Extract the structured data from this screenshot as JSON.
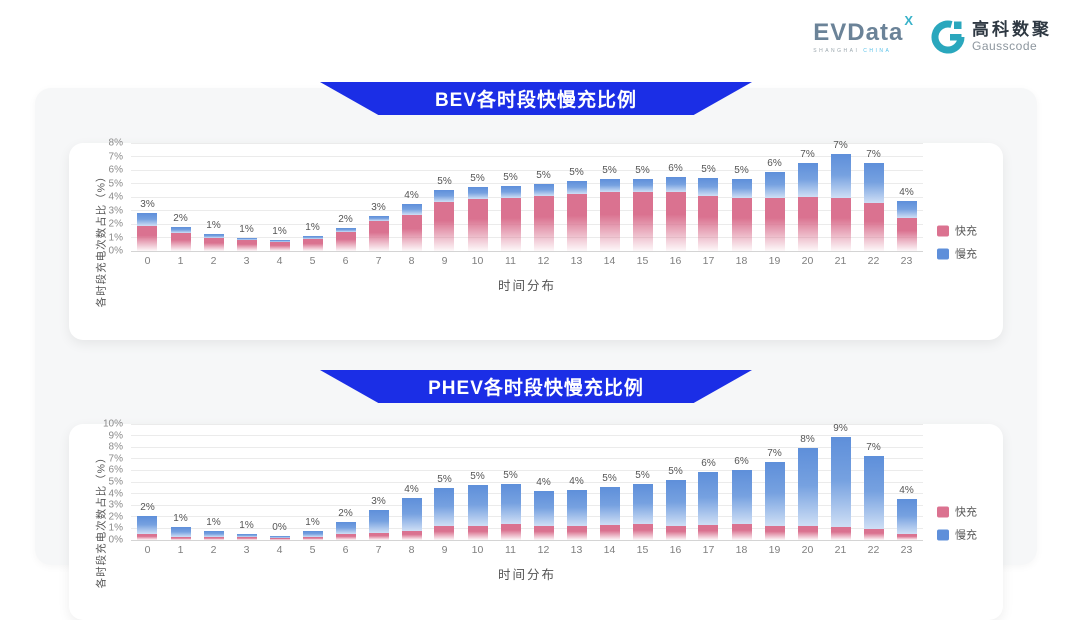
{
  "logo": {
    "evdata_text": "EVData",
    "evdata_sup": "X",
    "shanghai": "SHANGHAI",
    "china": "CHINA",
    "gausscode_cn": "高科数聚",
    "gausscode_en": "Gausscode",
    "brand_teal": "#2aa7bd",
    "brand_grey_blue": "#6b8398"
  },
  "banner_color": "#1b2ee6",
  "chart_data": [
    {
      "type": "bar",
      "stacked": true,
      "title": "BEV各时段快慢充比例",
      "xlabel": "时间分布",
      "ylabel": "各时段充电次数占比（%）",
      "ylim": [
        0,
        8
      ],
      "grid": true,
      "legend_position": "right",
      "yticks": [
        "0%",
        "1%",
        "2%",
        "3%",
        "4%",
        "5%",
        "6%",
        "7%",
        "8%"
      ],
      "categories": [
        "0",
        "1",
        "2",
        "3",
        "4",
        "5",
        "6",
        "7",
        "8",
        "9",
        "10",
        "11",
        "12",
        "13",
        "14",
        "15",
        "16",
        "17",
        "18",
        "19",
        "20",
        "21",
        "22",
        "23"
      ],
      "series": [
        {
          "name": "快充",
          "color": "#db7290",
          "values": [
            1.85,
            1.3,
            0.95,
            0.8,
            0.7,
            0.9,
            1.4,
            2.2,
            2.7,
            3.6,
            3.85,
            3.95,
            4.1,
            4.25,
            4.4,
            4.35,
            4.4,
            4.05,
            3.95,
            3.95,
            4.0,
            3.9,
            3.55,
            2.45
          ]
        },
        {
          "name": "慢充",
          "color": "#5e8fda",
          "values": [
            1.0,
            0.5,
            0.3,
            0.2,
            0.1,
            0.2,
            0.3,
            0.4,
            0.8,
            0.9,
            0.9,
            0.9,
            0.9,
            0.9,
            0.9,
            0.95,
            1.1,
            1.35,
            1.4,
            1.9,
            2.5,
            3.3,
            2.95,
            1.25
          ]
        }
      ],
      "bar_labels": [
        "3%",
        "2%",
        "1%",
        "1%",
        "1%",
        "1%",
        "2%",
        "3%",
        "4%",
        "5%",
        "5%",
        "5%",
        "5%",
        "5%",
        "5%",
        "5%",
        "6%",
        "5%",
        "5%",
        "6%",
        "7%",
        "7%",
        "7%",
        "4%"
      ]
    },
    {
      "type": "bar",
      "stacked": true,
      "title": "PHEV各时段快慢充比例",
      "xlabel": "时间分布",
      "ylabel": "各时段充电次数占比（%）",
      "ylim": [
        0,
        10
      ],
      "grid": true,
      "legend_position": "right",
      "yticks": [
        "0%",
        "1%",
        "2%",
        "3%",
        "4%",
        "5%",
        "6%",
        "7%",
        "8%",
        "9%",
        "10%"
      ],
      "categories": [
        "0",
        "1",
        "2",
        "3",
        "4",
        "5",
        "6",
        "7",
        "8",
        "9",
        "10",
        "11",
        "12",
        "13",
        "14",
        "15",
        "16",
        "17",
        "18",
        "19",
        "20",
        "21",
        "22",
        "23"
      ],
      "series": [
        {
          "name": "快充",
          "color": "#db7290",
          "values": [
            0.5,
            0.3,
            0.25,
            0.22,
            0.17,
            0.28,
            0.5,
            0.6,
            0.75,
            1.2,
            1.25,
            1.35,
            1.2,
            1.25,
            1.3,
            1.4,
            1.25,
            1.3,
            1.35,
            1.25,
            1.2,
            1.1,
            0.95,
            0.5
          ]
        },
        {
          "name": "慢充",
          "color": "#5e8fda",
          "values": [
            1.55,
            0.85,
            0.5,
            0.3,
            0.21,
            0.46,
            1.05,
            1.95,
            2.85,
            3.3,
            3.45,
            3.5,
            3.05,
            3.1,
            3.25,
            3.4,
            3.95,
            4.55,
            4.65,
            5.45,
            6.7,
            7.8,
            6.25,
            3.05
          ]
        }
      ],
      "bar_labels": [
        "2%",
        "1%",
        "1%",
        "1%",
        "0%",
        "1%",
        "2%",
        "3%",
        "4%",
        "5%",
        "5%",
        "5%",
        "4%",
        "4%",
        "5%",
        "5%",
        "5%",
        "6%",
        "6%",
        "7%",
        "8%",
        "9%",
        "7%",
        "4%"
      ]
    }
  ]
}
